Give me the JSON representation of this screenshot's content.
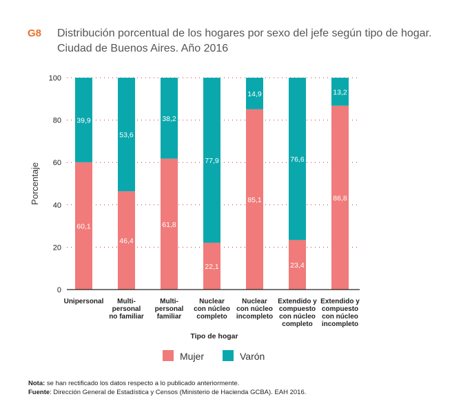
{
  "title": {
    "code": "G8",
    "line1": "Distribución porcentual de los hogares por sexo del jefe según tipo de hogar.",
    "line2": "Ciudad de Buenos Aires. Año 2016"
  },
  "chart_data": {
    "type": "bar",
    "stacked": true,
    "categories": [
      [
        "Unipersonal"
      ],
      [
        "Multi-",
        "personal",
        "no familiar"
      ],
      [
        "Multi-",
        "personal",
        "familiar"
      ],
      [
        "Nuclear",
        "con núcleo",
        "completo"
      ],
      [
        "Nuclear",
        "con núcleo",
        "incompleto"
      ],
      [
        "Extendido y",
        "compuesto",
        "con núcleo",
        "completo"
      ],
      [
        "Extendido y",
        "compuesto",
        "con núcleo",
        "incompleto"
      ]
    ],
    "series": [
      {
        "name": "Mujer",
        "color": "#f07b7a",
        "values": [
          60.1,
          46.4,
          61.8,
          22.1,
          85.1,
          23.4,
          86.8
        ],
        "labels": [
          "60,1",
          "46,4",
          "61,8",
          "22,1",
          "85,1",
          "23,4",
          "86,8"
        ]
      },
      {
        "name": "Varón",
        "color": "#0aa8ad",
        "values": [
          39.9,
          53.6,
          38.2,
          77.9,
          14.9,
          76.6,
          13.2
        ],
        "labels": [
          "39,9",
          "53,6",
          "38,2",
          "77,9",
          "14,9",
          "76,6",
          "13,2"
        ]
      }
    ],
    "xlabel": "Tipo de hogar",
    "ylabel": "Porcentaje",
    "ylim": [
      0,
      100
    ],
    "yticks": [
      0,
      20,
      40,
      60,
      80,
      100
    ],
    "grid": "dotted",
    "legend": "bottom"
  },
  "notes": {
    "note_label": "Nota:",
    "note_text": " se han rectificado los datos respecto a lo publicado anteriormente.",
    "source_label": "Fuente",
    "source_text": ": Dirección General de Estadística y Censos (Ministerio de Hacienda GCBA). EAH 2016."
  }
}
